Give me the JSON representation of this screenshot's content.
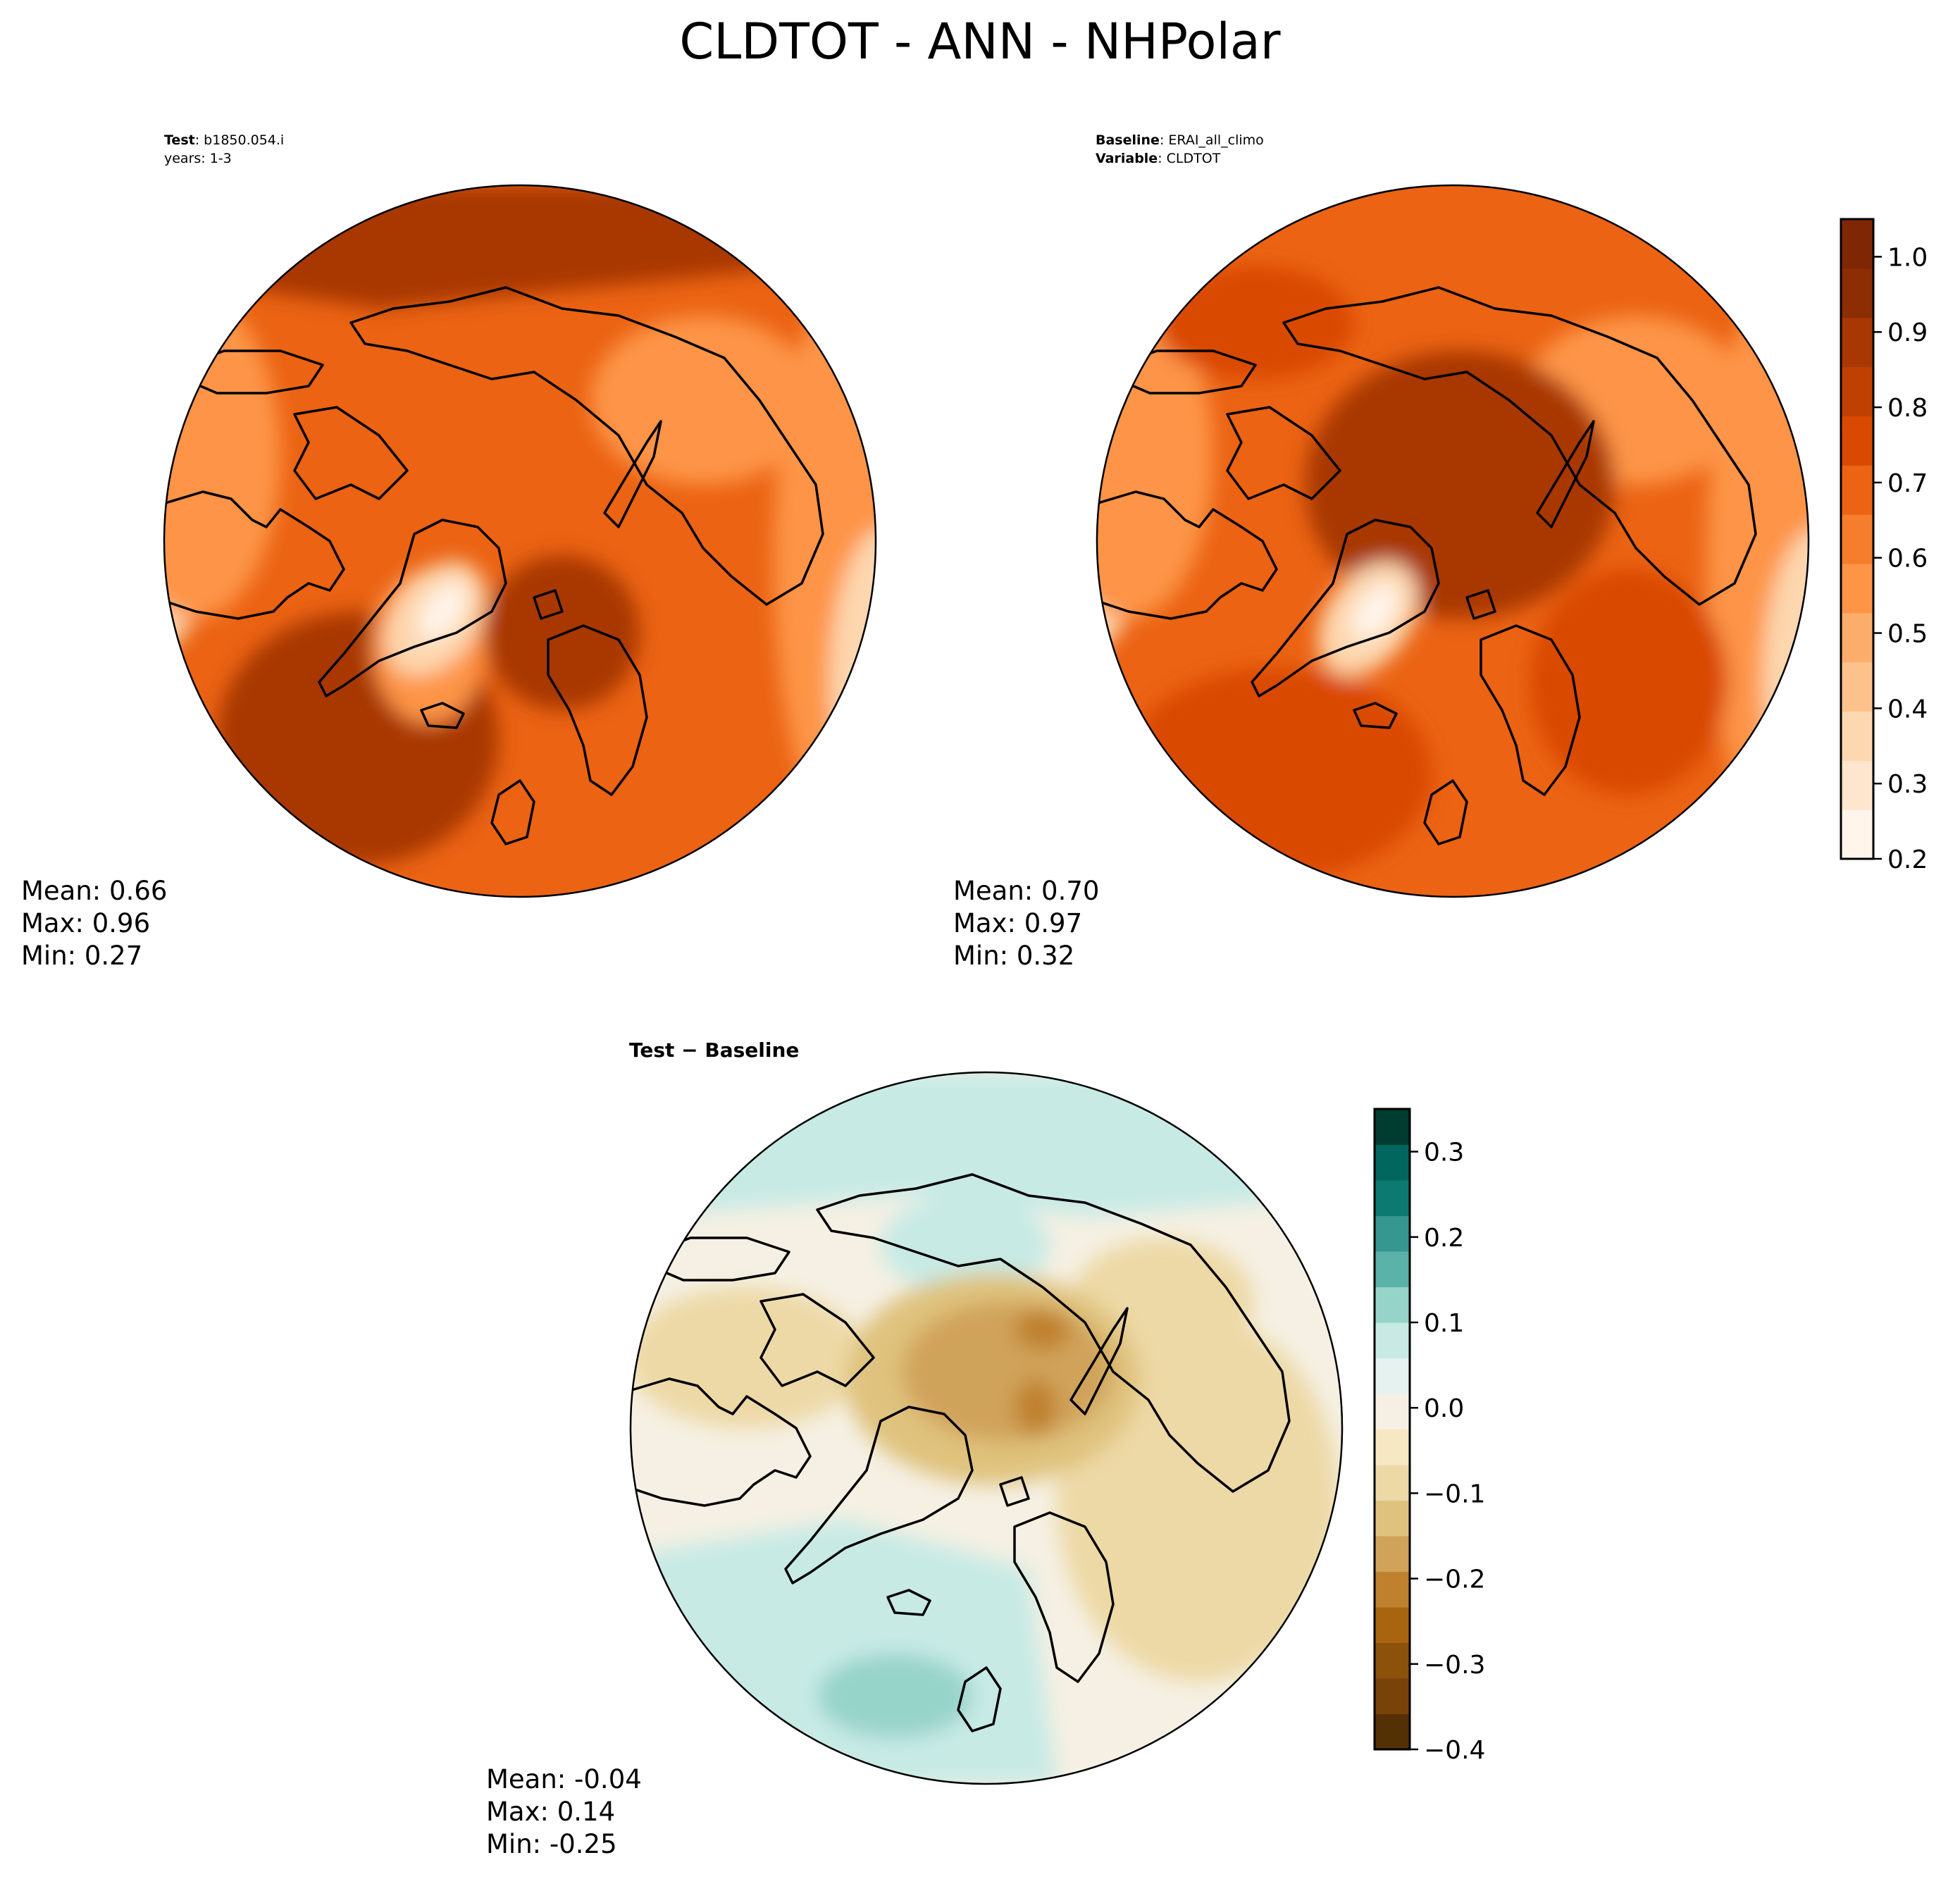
{
  "title": "CLDTOT - ANN - NHPolar",
  "panels": {
    "test": {
      "label_key": "Test",
      "label_value": "b1850.054.i",
      "line2": "years: 1-3",
      "mean": "Mean:  0.66",
      "max": "Max:  0.96",
      "min": "Min:  0.27"
    },
    "baseline": {
      "label_key": "Baseline",
      "label_value": "ERAI_all_climo",
      "var_key": "Variable",
      "var_value": "CLDTOT",
      "mean": "Mean:  0.70",
      "max": "Max:  0.97",
      "min": "Min:  0.32"
    },
    "diff": {
      "title_a": "Test",
      "title_b": "Baseline",
      "mean": "Mean: -0.04",
      "max": "Max:  0.14",
      "min": "Min: -0.25"
    }
  },
  "colorbars": {
    "cldtot": {
      "ticks": [
        "0.2",
        "0.3",
        "0.4",
        "0.5",
        "0.6",
        "0.7",
        "0.8",
        "0.9",
        "1.0"
      ],
      "range": [
        0.2,
        1.05
      ],
      "colors": [
        "#fff5eb",
        "#fee6ce",
        "#fdd7af",
        "#fdc28c",
        "#fdad6b",
        "#fd9446",
        "#f67d2b",
        "#eb6313",
        "#d94901",
        "#c04002",
        "#a83703",
        "#8c2d04",
        "#7f2704"
      ]
    },
    "diff": {
      "ticks": [
        "−0.4",
        "−0.3",
        "−0.2",
        "−0.1",
        "0.0",
        "0.1",
        "0.2",
        "0.3"
      ],
      "range": [
        -0.4,
        0.35
      ],
      "colors": [
        "#543005",
        "#784308",
        "#8c510a",
        "#a8650f",
        "#bf812d",
        "#d0a35a",
        "#dfc27d",
        "#edd9a6",
        "#f6e8c3",
        "#f5f0e3",
        "#e6f2ef",
        "#c7eae5",
        "#96d3c9",
        "#5ab2a8",
        "#35978f",
        "#0d7a72",
        "#01665e",
        "#003c30"
      ]
    }
  },
  "map_colors": {
    "test": {
      "ocean": "#eb6313",
      "dark": "#a83703",
      "mid": "#d94901",
      "light": "#fd9446",
      "pale": "#fdd7af",
      "palest": "#fff5eb"
    },
    "baseline": {
      "ocean": "#eb6313",
      "dark": "#a83703",
      "mid": "#d94901",
      "light": "#fd9446",
      "pale": "#fdd7af",
      "palest": "#fff5eb"
    },
    "diff": {
      "base": "#f5f0e3",
      "teal": "#c7eae5",
      "teal2": "#96d3c9",
      "tan": "#edd9a6",
      "tan2": "#dfc27d",
      "brown": "#d0a35a",
      "brown2": "#bf812d"
    }
  }
}
